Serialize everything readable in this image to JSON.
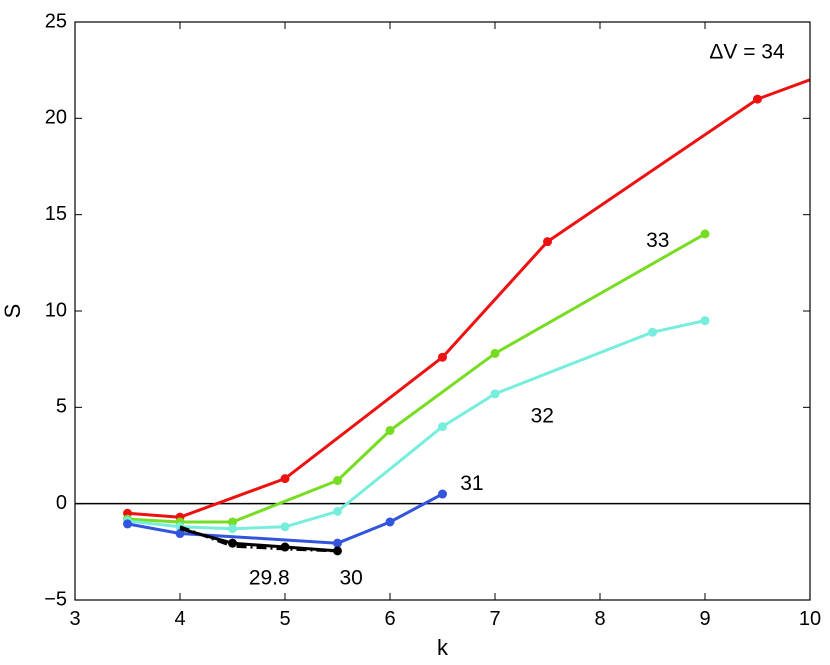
{
  "chart_data": {
    "type": "line",
    "xlabel": "k",
    "ylabel": "S",
    "xlim": [
      3,
      10
    ],
    "ylim": [
      -5,
      25
    ],
    "xticks": [
      "3",
      "4",
      "5",
      "6",
      "7",
      "8",
      "9",
      "10"
    ],
    "yticks": [
      "−5",
      "0",
      "5",
      "10",
      "15",
      "20",
      "25"
    ],
    "grid": false,
    "legend": "none",
    "reference_line": {
      "y": 0,
      "color": "#000000"
    },
    "series": [
      {
        "name": "ΔV = 34",
        "color": "#ee1111",
        "style": "solid",
        "x": [
          3.5,
          4,
          5,
          6.5,
          7.5,
          9.5,
          10
        ],
        "y": [
          -0.5,
          -0.7,
          1.3,
          7.6,
          13.6,
          21.0,
          22.0
        ],
        "markers": [
          true,
          true,
          true,
          true,
          true,
          true,
          false
        ],
        "label_pos": [
          9.4,
          23.4
        ]
      },
      {
        "name": "33",
        "color": "#77dd22",
        "style": "solid",
        "x": [
          3.5,
          4,
          4.5,
          5.5,
          6,
          7,
          9
        ],
        "y": [
          -0.8,
          -0.95,
          -0.95,
          1.2,
          3.8,
          7.8,
          14.0
        ],
        "markers": [
          true,
          true,
          true,
          true,
          true,
          true,
          true
        ],
        "label_pos": [
          8.55,
          13.6
        ]
      },
      {
        "name": "32",
        "color": "#77eedd",
        "style": "solid",
        "x": [
          3.5,
          4,
          4.5,
          5,
          5.5,
          6.5,
          7,
          8.5,
          9
        ],
        "y": [
          -0.9,
          -1.2,
          -1.3,
          -1.2,
          -0.4,
          4.0,
          5.7,
          8.9,
          9.5
        ],
        "markers": [
          true,
          true,
          true,
          true,
          true,
          true,
          true,
          true,
          true
        ],
        "label_pos": [
          7.45,
          4.5
        ]
      },
      {
        "name": "31",
        "color": "#3355dd",
        "style": "solid",
        "x": [
          3.5,
          4,
          5.5,
          6,
          6.5
        ],
        "y": [
          -1.05,
          -1.55,
          -2.05,
          -0.95,
          0.5
        ],
        "markers": [
          true,
          true,
          true,
          true,
          true
        ],
        "label_pos": [
          6.78,
          1.0
        ]
      },
      {
        "name": "30",
        "color": "#000000",
        "style": "solid",
        "x": [
          4,
          4.5,
          5,
          5.5
        ],
        "y": [
          -1.3,
          -2.05,
          -2.25,
          -2.45
        ],
        "markers": [
          false,
          true,
          true,
          true
        ],
        "label_pos": [
          5.63,
          -3.9
        ]
      },
      {
        "name": "29.8",
        "color": "#000000",
        "style": "dashdot",
        "x": [
          4,
          4.5,
          5,
          5.5
        ],
        "y": [
          -1.2,
          -2.2,
          -2.35,
          -2.45
        ],
        "markers": [
          false,
          false,
          false,
          false
        ],
        "label_pos": [
          4.85,
          -3.9
        ]
      }
    ]
  }
}
